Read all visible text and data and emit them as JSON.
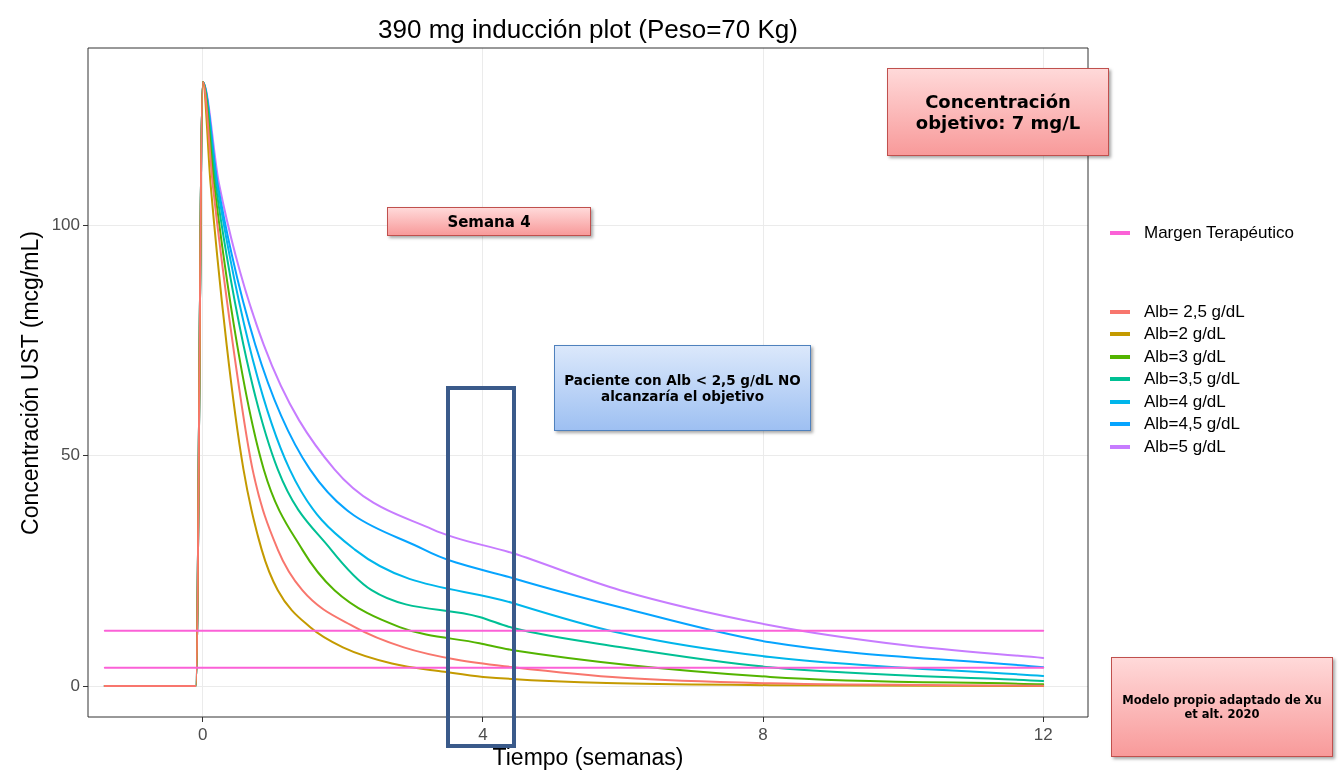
{
  "chart_data": {
    "type": "line",
    "title": "390 mg inducción plot (Peso=70 Kg)",
    "xlabel": "Tiempo (semanas)",
    "ylabel": "Concentración UST (mcg/mL)",
    "xlim": [
      -1.64,
      12.64
    ],
    "xticks": [
      0,
      4,
      8,
      12
    ],
    "ylim": [
      -6.7,
      138.4
    ],
    "yticks": [
      0,
      50,
      100
    ],
    "grid": true,
    "legend": "right",
    "marker": "none",
    "line_style": "solid",
    "annotations": [
      "Concentración objetivo: 7 mg/L",
      "Semana 4",
      "Paciente con Alb < 2,5 g/dL NO alcanzaría el objetivo",
      "Modelo propio adaptado de Xu et alt. 2020"
    ],
    "series": [
      {
        "name": "Margen Terapéutico",
        "color": "#fb61d7",
        "x": [
          -1.4,
          12
        ],
        "values": [
          12,
          12
        ]
      },
      {
        "color": "#fb61d7",
        "x": [
          -1.4,
          12
        ],
        "values": [
          4,
          4
        ]
      },
      {
        "name": "Alb= 2,5 g/dL",
        "color": "#f8766d",
        "x": [
          -1.4,
          -0.1,
          0,
          0.14,
          0.43,
          0.71,
          1.07,
          1.42,
          2.17,
          2.87,
          3.63,
          4.43,
          6,
          8.1,
          12
        ],
        "values": [
          0,
          0,
          131,
          109,
          74,
          47,
          29.6,
          20.8,
          12.8,
          8.4,
          5.7,
          4.1,
          1.8,
          0.6,
          0.1
        ]
      },
      {
        "name": "Alb=2 g/dL",
        "color": "#c49a00",
        "x": [
          -1.4,
          -0.1,
          0,
          0.11,
          0.34,
          0.58,
          0.84,
          1.07,
          1.53,
          2,
          2.7,
          3.45,
          4,
          8.1,
          12
        ],
        "values": [
          0,
          0,
          131,
          109,
          74,
          47,
          29.6,
          20.8,
          12.8,
          8.4,
          4.9,
          3.1,
          2,
          0.2,
          0
        ]
      },
      {
        "name": "Alb=3 g/dL",
        "color": "#53b400",
        "x": [
          -1.4,
          -0.1,
          0,
          0.16,
          0.49,
          0.87,
          1.42,
          1.88,
          2.81,
          3.95,
          4.43,
          8.1,
          12
        ],
        "values": [
          0,
          0,
          131,
          109,
          74,
          47,
          29.6,
          20.8,
          12.8,
          9.3,
          7.8,
          2,
          0.4
        ]
      },
      {
        "name": "Alb=3,5 g/dL",
        "color": "#00c094",
        "x": [
          -1.4,
          -0.1,
          0,
          0.18,
          0.58,
          1.07,
          1.83,
          2.41,
          3.95,
          4.43,
          5.95,
          8.1,
          12
        ],
        "values": [
          0,
          0,
          131,
          109,
          74,
          47,
          29.6,
          20.8,
          15,
          12.6,
          8.5,
          4.1,
          1.1
        ]
      },
      {
        "name": "Alb=4 g/dL",
        "color": "#00b6eb",
        "x": [
          -1.4,
          -0.1,
          0,
          0.2,
          0.66,
          1.24,
          2.17,
          4.43,
          5.96,
          8.1,
          12
        ],
        "values": [
          0,
          0,
          131,
          109,
          74,
          47,
          29.6,
          18,
          11.5,
          6.3,
          2.2
        ]
      },
      {
        "name": "Alb=4,5 g/dL",
        "color": "#06a4ff",
        "x": [
          -1.4,
          -0.1,
          0,
          0.21,
          0.75,
          1.53,
          3.16,
          4.43,
          5.96,
          8.1,
          12
        ],
        "values": [
          0,
          0,
          131,
          109,
          74,
          47,
          29.6,
          23.4,
          17.1,
          9.5,
          4.1
        ]
      },
      {
        "name": "Alb=5 g/dL",
        "color": "#c77cff",
        "x": [
          -1.4,
          -0.1,
          0,
          0.23,
          0.87,
          1.88,
          3.28,
          4.43,
          5.96,
          8.1,
          10,
          12
        ],
        "values": [
          0,
          0,
          131,
          109,
          74,
          47,
          34,
          28.8,
          20.8,
          13.2,
          8.9,
          6.1
        ]
      }
    ]
  }
}
